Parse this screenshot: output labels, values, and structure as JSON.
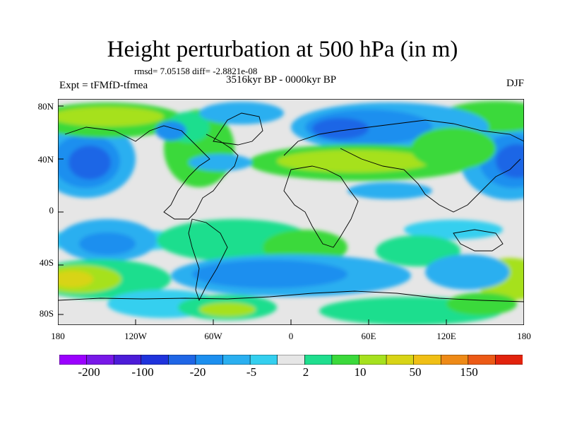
{
  "title": "Height perturbation at 500 hPa (in m)",
  "stats": "rmsd= 7.05158 diff= -2.8821e-08",
  "period": "3516kyr BP - 0000kyr BP",
  "experiment": "Expt = tFMfD-tfmea",
  "season": "DJF",
  "lat_labels": [
    "80N",
    "40N",
    "0",
    "40S",
    "80S"
  ],
  "lon_labels": [
    "180",
    "120W",
    "60W",
    "0",
    "60E",
    "120E",
    "180"
  ],
  "colorbar": {
    "colors": [
      "#9b00ff",
      "#7818e8",
      "#4c1cd8",
      "#1f33dc",
      "#1f66e6",
      "#1c8fef",
      "#2aaff0",
      "#34cfef",
      "#e6e6e6",
      "#1fde8e",
      "#3bd93b",
      "#a6e11e",
      "#d8d416",
      "#f0bf15",
      "#ee8a17",
      "#ec5a16",
      "#e2230d"
    ],
    "labels": [
      "-200",
      "-100",
      "-20",
      "-5",
      "2",
      "10",
      "50",
      "150"
    ]
  },
  "palette": {
    "background": "#e6e6e6",
    "coast": "#000000"
  }
}
